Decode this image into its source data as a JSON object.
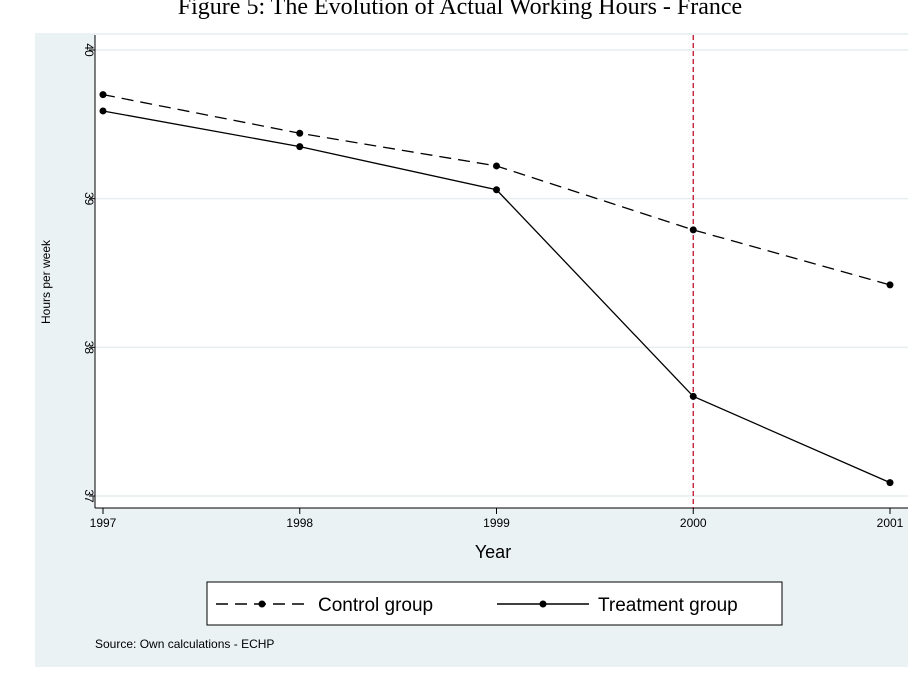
{
  "title": "Figure 5: The Evolution of Actual Working Hours - France",
  "chart_data": {
    "type": "line",
    "title": "Figure 5: The Evolution of Actual Working Hours - France",
    "xlabel": "Year",
    "ylabel": "Hours per week",
    "x": [
      1997,
      1998,
      1999,
      2000,
      2001
    ],
    "xlim": [
      1997,
      2001
    ],
    "ylim": [
      37,
      40
    ],
    "y_ticks": [
      37,
      38,
      39,
      40
    ],
    "y_tick_labels": [
      "37",
      "38",
      "39",
      "40"
    ],
    "x_tick_labels": [
      "1997",
      "1998",
      "1999",
      "2000",
      "2001"
    ],
    "grid": true,
    "reference_line": {
      "x": 2000,
      "color": "#c0102a",
      "style": "dashed"
    },
    "series": [
      {
        "name": "Control group",
        "values": [
          39.7,
          39.44,
          39.22,
          38.79,
          38.42
        ],
        "style": "dashed",
        "color": "#000000"
      },
      {
        "name": "Treatment group",
        "values": [
          39.59,
          39.35,
          39.06,
          37.67,
          37.09
        ],
        "style": "solid",
        "color": "#000000"
      }
    ],
    "legend_position": "bottom",
    "note": "Source: Own calculations - ECHP"
  }
}
